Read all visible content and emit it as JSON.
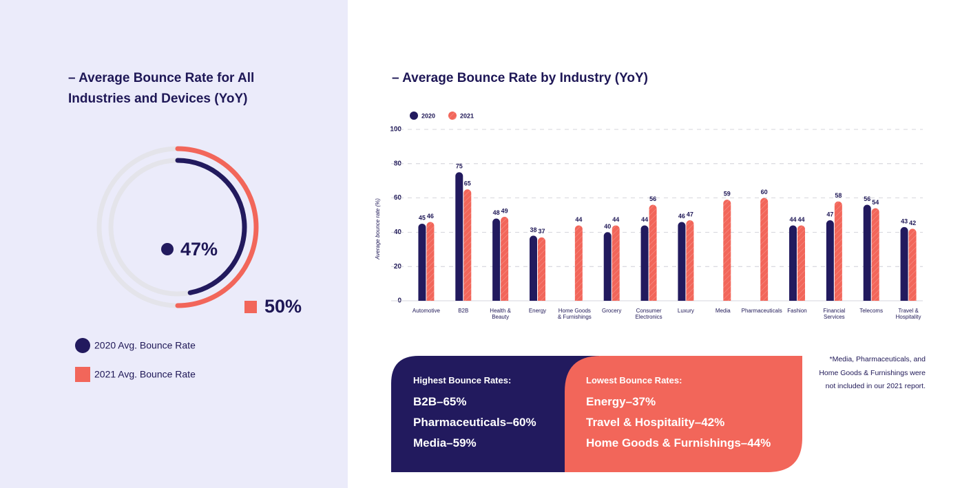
{
  "chart_data": [
    {
      "type": "donut",
      "title": "– Average Bounce Rate for All Industries and Devices (YoY)",
      "series": [
        {
          "name": "2020 Avg. Bounce Rate",
          "color": "#221a5e",
          "values": [
            47
          ],
          "value_labels": [
            "47%"
          ]
        },
        {
          "name": "2021 Avg. Bounce Rate",
          "color": "#f2665a",
          "values": [
            50
          ],
          "value_labels": [
            "50%"
          ]
        }
      ]
    },
    {
      "type": "bar",
      "title": "– Average Bounce Rate by Industry (YoY)",
      "ylabel": "Average bounce rate (%)",
      "categories": [
        "Automotive",
        "B2B",
        "Health & Beauty",
        "Energy",
        "Home Goods & Furnishings",
        "Grocery",
        "Consumer Electronics",
        "Luxury",
        "Media",
        "Pharmaceuticals",
        "Fashion",
        "Financial Services",
        "Telecoms",
        "Travel & Hospitality"
      ],
      "series": [
        {
          "name": "2020",
          "color": "#221a5e",
          "values": [
            45,
            75,
            48,
            38,
            null,
            40,
            44,
            46,
            null,
            null,
            44,
            47,
            56,
            43
          ]
        },
        {
          "name": "2021",
          "color": "#f2665a",
          "values": [
            46,
            65,
            49,
            37,
            44,
            44,
            56,
            47,
            59,
            60,
            44,
            58,
            54,
            42
          ]
        }
      ],
      "ylim": [
        0,
        100
      ],
      "yticks": [
        0,
        20,
        40,
        60,
        80,
        100
      ],
      "grid": true
    }
  ],
  "highlights": {
    "highest": {
      "title": "Highest Bounce Rates:",
      "items": [
        "B2B–65%",
        "Pharmaceuticals–60%",
        "Media–59%"
      ]
    },
    "lowest": {
      "title": "Lowest Bounce Rates:",
      "items": [
        "Energy–37%",
        "Travel & Hospitality–42%",
        "Home Goods & Furnishings–44%"
      ]
    }
  },
  "footnote": "*Media, Pharmaceuticals, and Home Goods & Furnishings were not included in our 2021 report."
}
